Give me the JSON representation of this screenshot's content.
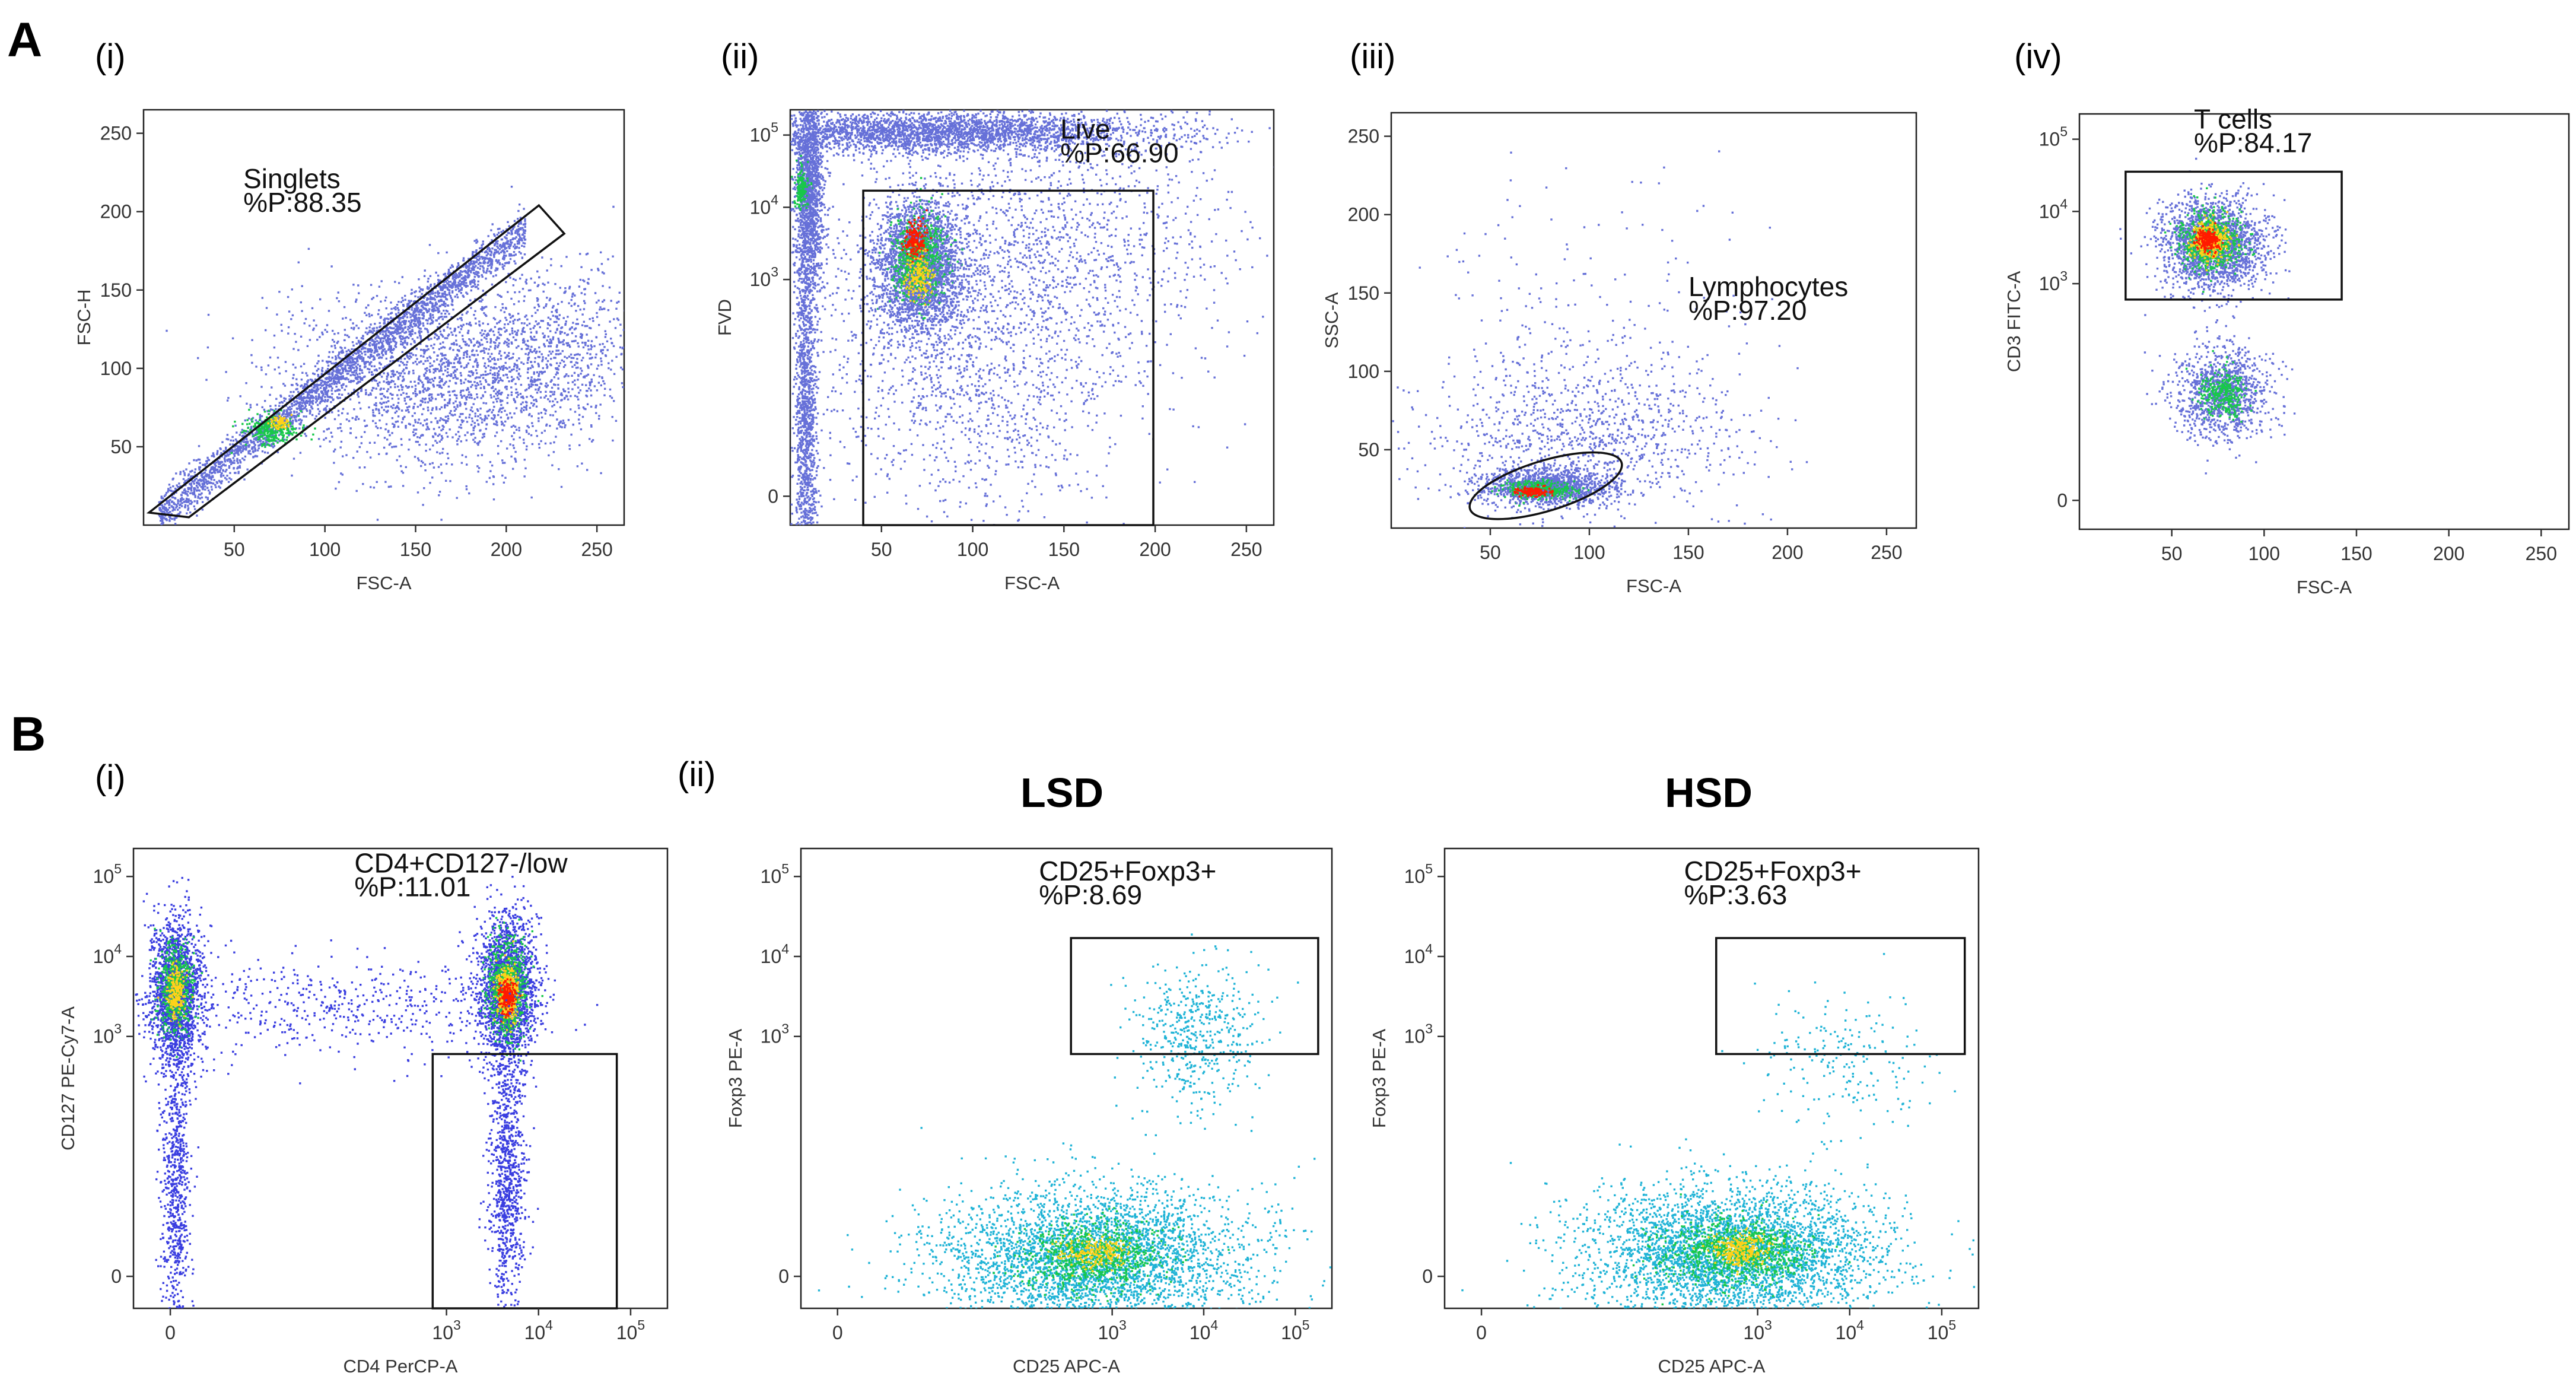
{
  "figure": {
    "panel_letters": [
      "A",
      "B"
    ],
    "colors": {
      "density_low": "#6670d8",
      "density_mid": "#18c84a",
      "density_high": "#ff1a00",
      "cyan_points": "#1fb3d6",
      "frame": "#222222"
    }
  },
  "chart_data": [
    {
      "id": "A-i",
      "type": "scatter",
      "panel": "A",
      "sub_label": "(i)",
      "xlabel": "FSC-A",
      "ylabel": "FSC-H",
      "x_scale": "linear",
      "y_scale": "linear",
      "xlim": [
        0,
        265
      ],
      "ylim": [
        0,
        265
      ],
      "x_ticks": [
        {
          "v": 50,
          "t": "50"
        },
        {
          "v": 100,
          "t": "100"
        },
        {
          "v": 150,
          "t": "150"
        },
        {
          "v": 200,
          "t": "200"
        },
        {
          "v": 250,
          "t": "250"
        }
      ],
      "y_ticks": [
        {
          "v": 50,
          "t": "50"
        },
        {
          "v": 100,
          "t": "100"
        },
        {
          "v": 150,
          "t": "150"
        },
        {
          "v": 200,
          "t": "200"
        },
        {
          "v": 250,
          "t": "250"
        }
      ],
      "gate": {
        "shape": "polygon",
        "points": [
          [
            3,
            8
          ],
          [
            218,
            204
          ],
          [
            232,
            186
          ],
          [
            25,
            5
          ]
        ],
        "name": "Singlets",
        "stat": "%P:88.35"
      },
      "gate_label_at": [
        55,
        215
      ],
      "populations": [
        {
          "kind": "band",
          "x0": 8,
          "x1": 210,
          "slope": 0.9,
          "intercept": 1,
          "spread": 7,
          "n": 2600,
          "color": "#6670d8"
        },
        {
          "kind": "blob",
          "cx": 70,
          "cy": 62,
          "sx": 7,
          "sy": 5,
          "n": 280,
          "color": "#18c84a"
        },
        {
          "kind": "blob",
          "cx": 75,
          "cy": 66,
          "sx": 3,
          "sy": 2,
          "n": 70,
          "color": "#ffd11a"
        },
        {
          "kind": "blob",
          "cx": 165,
          "cy": 95,
          "sx": 45,
          "sy": 28,
          "n": 2200,
          "color": "#6670d8"
        },
        {
          "kind": "blob",
          "cx": 230,
          "cy": 120,
          "sx": 25,
          "sy": 25,
          "n": 500,
          "color": "#6670d8"
        }
      ]
    },
    {
      "id": "A-ii",
      "type": "scatter",
      "panel": "A",
      "sub_label": "(ii)",
      "xlabel": "FSC-A",
      "ylabel": "FVD",
      "x_scale": "linear",
      "y_scale": "biexp",
      "xlim": [
        0,
        265
      ],
      "ylim": [
        -0.4,
        5.35
      ],
      "x_ticks": [
        {
          "v": 50,
          "t": "50"
        },
        {
          "v": 100,
          "t": "100"
        },
        {
          "v": 150,
          "t": "150"
        },
        {
          "v": 200,
          "t": "200"
        },
        {
          "v": 250,
          "t": "250"
        }
      ],
      "y_ticks": [
        {
          "v": 0,
          "t": "0"
        },
        {
          "v": 3,
          "t": "10",
          "e": "3"
        },
        {
          "v": 4,
          "t": "10",
          "e": "4"
        },
        {
          "v": 5,
          "t": "10",
          "e": "5"
        }
      ],
      "gate": {
        "shape": "rect",
        "x0": 40,
        "x1": 199,
        "y0": -0.4,
        "y1": 4.23,
        "name": "Live",
        "stat": "%P:66.90"
      },
      "gate_label_at": [
        148,
        4.95
      ],
      "populations": [
        {
          "kind": "blob",
          "cx": 70,
          "cy": 3.2,
          "sx": 12,
          "sy": 0.45,
          "n": 2600,
          "color": "#6670d8"
        },
        {
          "kind": "blob",
          "cx": 70,
          "cy": 3.3,
          "sx": 7,
          "sy": 0.28,
          "n": 700,
          "color": "#18c84a"
        },
        {
          "kind": "blob",
          "cx": 68,
          "cy": 3.55,
          "sx": 3,
          "sy": 0.12,
          "n": 200,
          "color": "#ff1a00"
        },
        {
          "kind": "blob",
          "cx": 70,
          "cy": 3.05,
          "sx": 4,
          "sy": 0.15,
          "n": 180,
          "color": "#ffd11a"
        },
        {
          "kind": "blob",
          "cx": 80,
          "cy": 5.05,
          "sx": 60,
          "sy": 0.15,
          "n": 3000,
          "color": "#6670d8"
        },
        {
          "kind": "blob",
          "cx": 10,
          "cy": 4.2,
          "sx": 4,
          "sy": 0.7,
          "n": 1500,
          "color": "#6670d8"
        },
        {
          "kind": "blob",
          "cx": 6,
          "cy": 4.25,
          "sx": 2,
          "sy": 0.15,
          "n": 150,
          "color": "#18c84a"
        },
        {
          "kind": "blob",
          "cx": 8,
          "cy": 1.0,
          "sx": 3,
          "sy": 1.3,
          "n": 1300,
          "color": "#6670d8"
        },
        {
          "kind": "blob",
          "cx": 100,
          "cy": 2.0,
          "sx": 45,
          "sy": 1.2,
          "n": 1600,
          "color": "#6670d8"
        },
        {
          "kind": "blob",
          "cx": 150,
          "cy": 3.6,
          "sx": 50,
          "sy": 0.8,
          "n": 900,
          "color": "#6670d8"
        }
      ]
    },
    {
      "id": "A-iii",
      "type": "scatter",
      "panel": "A",
      "sub_label": "(iii)",
      "xlabel": "FSC-A",
      "ylabel": "SSC-A",
      "x_scale": "linear",
      "y_scale": "linear",
      "xlim": [
        0,
        265
      ],
      "ylim": [
        0,
        265
      ],
      "x_ticks": [
        {
          "v": 50,
          "t": "50"
        },
        {
          "v": 100,
          "t": "100"
        },
        {
          "v": 150,
          "t": "150"
        },
        {
          "v": 200,
          "t": "200"
        },
        {
          "v": 250,
          "t": "250"
        }
      ],
      "y_ticks": [
        {
          "v": 50,
          "t": "50"
        },
        {
          "v": 100,
          "t": "100"
        },
        {
          "v": 150,
          "t": "150"
        },
        {
          "v": 200,
          "t": "200"
        },
        {
          "v": 250,
          "t": "250"
        }
      ],
      "gate": {
        "shape": "ellipse",
        "cx": 78,
        "cy": 27,
        "rx": 40,
        "ry": 16,
        "rot": -17,
        "name": "Lymphocytes",
        "stat": "%P:97.20"
      },
      "gate_label_at": [
        150,
        148
      ],
      "populations": [
        {
          "kind": "blob",
          "cx": 78,
          "cy": 27,
          "sx": 17,
          "sy": 6,
          "n": 1300,
          "color": "#6670d8"
        },
        {
          "kind": "blob",
          "cx": 75,
          "cy": 25,
          "sx": 9,
          "sy": 3,
          "n": 350,
          "color": "#18c84a"
        },
        {
          "kind": "blob",
          "cx": 72,
          "cy": 24,
          "sx": 4,
          "sy": 1.5,
          "n": 120,
          "color": "#ff1a00"
        },
        {
          "kind": "blob",
          "cx": 100,
          "cy": 60,
          "sx": 40,
          "sy": 25,
          "n": 900,
          "color": "#6670d8"
        },
        {
          "kind": "blob",
          "cx": 95,
          "cy": 120,
          "sx": 45,
          "sy": 60,
          "n": 250,
          "color": "#6670d8"
        }
      ]
    },
    {
      "id": "A-iv",
      "type": "scatter",
      "panel": "A",
      "sub_label": "(iv)",
      "xlabel": "FSC-A",
      "ylabel": "CD3 FITC-A",
      "x_scale": "linear",
      "y_scale": "biexp",
      "xlim": [
        0,
        265
      ],
      "ylim": [
        -0.4,
        5.35
      ],
      "x_ticks": [
        {
          "v": 50,
          "t": "50"
        },
        {
          "v": 100,
          "t": "100"
        },
        {
          "v": 150,
          "t": "150"
        },
        {
          "v": 200,
          "t": "200"
        },
        {
          "v": 250,
          "t": "250"
        }
      ],
      "y_ticks": [
        {
          "v": 0,
          "t": "0"
        },
        {
          "v": 3,
          "t": "10",
          "e": "3"
        },
        {
          "v": 4,
          "t": "10",
          "e": "4"
        },
        {
          "v": 5,
          "t": "10",
          "e": "5"
        }
      ],
      "gate": {
        "shape": "rect",
        "x0": 25,
        "x1": 142,
        "y0": 2.78,
        "y1": 4.55,
        "name": "T cells",
        "stat": "%P:84.17"
      },
      "gate_label_at": [
        62,
        5.15
      ],
      "populations": [
        {
          "kind": "blob",
          "cx": 72,
          "cy": 3.55,
          "sx": 14,
          "sy": 0.32,
          "n": 2000,
          "color": "#6670d8"
        },
        {
          "kind": "blob",
          "cx": 70,
          "cy": 3.6,
          "sx": 8,
          "sy": 0.2,
          "n": 700,
          "color": "#18c84a"
        },
        {
          "kind": "blob",
          "cx": 70,
          "cy": 3.6,
          "sx": 5,
          "sy": 0.12,
          "n": 350,
          "color": "#ffd11a"
        },
        {
          "kind": "blob",
          "cx": 69,
          "cy": 3.62,
          "sx": 3,
          "sy": 0.08,
          "n": 200,
          "color": "#ff1a00"
        },
        {
          "kind": "blob",
          "cx": 77,
          "cy": 1.5,
          "sx": 13,
          "sy": 0.32,
          "n": 1100,
          "color": "#6670d8"
        },
        {
          "kind": "blob",
          "cx": 77,
          "cy": 1.5,
          "sx": 6,
          "sy": 0.15,
          "n": 300,
          "color": "#18c84a"
        }
      ]
    },
    {
      "id": "B-i",
      "type": "scatter",
      "panel": "B",
      "sub_label": "(i)",
      "xlabel": "CD4 PerCP-A",
      "ylabel": "CD127 PE-Cy7-A",
      "x_scale": "biexp",
      "y_scale": "biexp",
      "xlim": [
        -0.4,
        5.4
      ],
      "ylim": [
        -0.4,
        5.35
      ],
      "x_ticks": [
        {
          "v": 0,
          "t": "0"
        },
        {
          "v": 3,
          "t": "10",
          "e": "3"
        },
        {
          "v": 4,
          "t": "10",
          "e": "4"
        },
        {
          "v": 5,
          "t": "10",
          "e": "5"
        }
      ],
      "y_ticks": [
        {
          "v": 0,
          "t": "0"
        },
        {
          "v": 3,
          "t": "10",
          "e": "3"
        },
        {
          "v": 4,
          "t": "10",
          "e": "4"
        },
        {
          "v": 5,
          "t": "10",
          "e": "5"
        }
      ],
      "gate": {
        "shape": "rect",
        "x0": 2.85,
        "x1": 4.85,
        "y0": -0.4,
        "y1": 2.78,
        "name": "CD4+CD127-/low",
        "stat": "%P:11.01"
      },
      "gate_label_at": [
        2.0,
        5.05
      ],
      "populations": [
        {
          "kind": "blob",
          "cx": 0.05,
          "cy": 3.55,
          "sx": 0.14,
          "sy": 0.45,
          "n": 1800,
          "color": "#3a3ee0"
        },
        {
          "kind": "blob",
          "cx": 0.05,
          "cy": 3.6,
          "sx": 0.09,
          "sy": 0.28,
          "n": 500,
          "color": "#18c84a"
        },
        {
          "kind": "blob",
          "cx": 0.05,
          "cy": 3.55,
          "sx": 0.05,
          "sy": 0.15,
          "n": 200,
          "color": "#ffd11a"
        },
        {
          "kind": "blob",
          "cx": 0.05,
          "cy": 1.2,
          "sx": 0.08,
          "sy": 0.9,
          "n": 700,
          "color": "#3a3ee0"
        },
        {
          "kind": "blob",
          "cx": 3.65,
          "cy": 3.6,
          "sx": 0.16,
          "sy": 0.45,
          "n": 2000,
          "color": "#3a3ee0"
        },
        {
          "kind": "blob",
          "cx": 3.65,
          "cy": 3.6,
          "sx": 0.1,
          "sy": 0.3,
          "n": 700,
          "color": "#18c84a"
        },
        {
          "kind": "blob",
          "cx": 3.65,
          "cy": 3.55,
          "sx": 0.06,
          "sy": 0.18,
          "n": 350,
          "color": "#ffd11a"
        },
        {
          "kind": "blob",
          "cx": 3.65,
          "cy": 3.5,
          "sx": 0.04,
          "sy": 0.1,
          "n": 200,
          "color": "#ff1a00"
        },
        {
          "kind": "blob",
          "cx": 3.65,
          "cy": 1.3,
          "sx": 0.1,
          "sy": 0.9,
          "n": 900,
          "color": "#3a3ee0"
        },
        {
          "kind": "blob",
          "cx": 1.8,
          "cy": 3.4,
          "sx": 1.0,
          "sy": 0.3,
          "n": 500,
          "color": "#3a3ee0"
        }
      ]
    },
    {
      "id": "B-ii-LSD",
      "type": "scatter",
      "panel": "B",
      "sub_label": "(ii)",
      "title": "LSD",
      "xlabel": "CD25 APC-A",
      "ylabel": "Foxp3 PE-A",
      "x_scale": "biexp",
      "y_scale": "biexp",
      "xlim": [
        -0.4,
        5.4
      ],
      "ylim": [
        -0.4,
        5.35
      ],
      "x_ticks": [
        {
          "v": 0,
          "t": "0"
        },
        {
          "v": 3,
          "t": "10",
          "e": "3"
        },
        {
          "v": 4,
          "t": "10",
          "e": "4"
        },
        {
          "v": 5,
          "t": "10",
          "e": "5"
        }
      ],
      "y_ticks": [
        {
          "v": 0,
          "t": "0"
        },
        {
          "v": 3,
          "t": "10",
          "e": "3"
        },
        {
          "v": 4,
          "t": "10",
          "e": "4"
        },
        {
          "v": 5,
          "t": "10",
          "e": "5"
        }
      ],
      "gate": {
        "shape": "rect",
        "x0": 2.55,
        "x1": 5.25,
        "y0": 2.78,
        "y1": 4.23,
        "name": "CD25+Foxp3+",
        "stat": "%P:8.69"
      },
      "gate_label_at": [
        2.2,
        4.95
      ],
      "populations": [
        {
          "kind": "blob",
          "cx": 2.8,
          "cy": 0.25,
          "sx": 0.85,
          "sy": 0.45,
          "n": 3600,
          "color": "#1fb3d6"
        },
        {
          "kind": "blob",
          "cx": 2.8,
          "cy": 0.25,
          "sx": 0.4,
          "sy": 0.22,
          "n": 700,
          "color": "#18c84a"
        },
        {
          "kind": "blob",
          "cx": 2.8,
          "cy": 0.3,
          "sx": 0.18,
          "sy": 0.1,
          "n": 200,
          "color": "#ffd11a"
        },
        {
          "kind": "blob",
          "cx": 3.9,
          "cy": 3.0,
          "sx": 0.35,
          "sy": 0.45,
          "n": 500,
          "color": "#1fb3d6"
        }
      ]
    },
    {
      "id": "B-ii-HSD",
      "type": "scatter",
      "panel": "B",
      "title": "HSD",
      "xlabel": "CD25 APC-A",
      "ylabel": "Foxp3 PE-A",
      "x_scale": "biexp",
      "y_scale": "biexp",
      "xlim": [
        -0.4,
        5.4
      ],
      "ylim": [
        -0.4,
        5.35
      ],
      "x_ticks": [
        {
          "v": 0,
          "t": "0"
        },
        {
          "v": 3,
          "t": "10",
          "e": "3"
        },
        {
          "v": 4,
          "t": "10",
          "e": "4"
        },
        {
          "v": 5,
          "t": "10",
          "e": "5"
        }
      ],
      "y_ticks": [
        {
          "v": 0,
          "t": "0"
        },
        {
          "v": 3,
          "t": "10",
          "e": "3"
        },
        {
          "v": 4,
          "t": "10",
          "e": "4"
        },
        {
          "v": 5,
          "t": "10",
          "e": "5"
        }
      ],
      "gate": {
        "shape": "rect",
        "x0": 2.55,
        "x1": 5.25,
        "y0": 2.78,
        "y1": 4.23,
        "name": "CD25+Foxp3+",
        "stat": "%P:3.63"
      },
      "gate_label_at": [
        2.2,
        4.95
      ],
      "populations": [
        {
          "kind": "blob",
          "cx": 2.7,
          "cy": 0.3,
          "sx": 0.8,
          "sy": 0.42,
          "n": 3800,
          "color": "#1fb3d6"
        },
        {
          "kind": "blob",
          "cx": 2.75,
          "cy": 0.32,
          "sx": 0.38,
          "sy": 0.2,
          "n": 800,
          "color": "#18c84a"
        },
        {
          "kind": "blob",
          "cx": 2.8,
          "cy": 0.35,
          "sx": 0.17,
          "sy": 0.1,
          "n": 250,
          "color": "#ffd11a"
        },
        {
          "kind": "blob",
          "cx": 3.9,
          "cy": 2.7,
          "sx": 0.45,
          "sy": 0.4,
          "n": 200,
          "color": "#1fb3d6"
        }
      ]
    }
  ]
}
